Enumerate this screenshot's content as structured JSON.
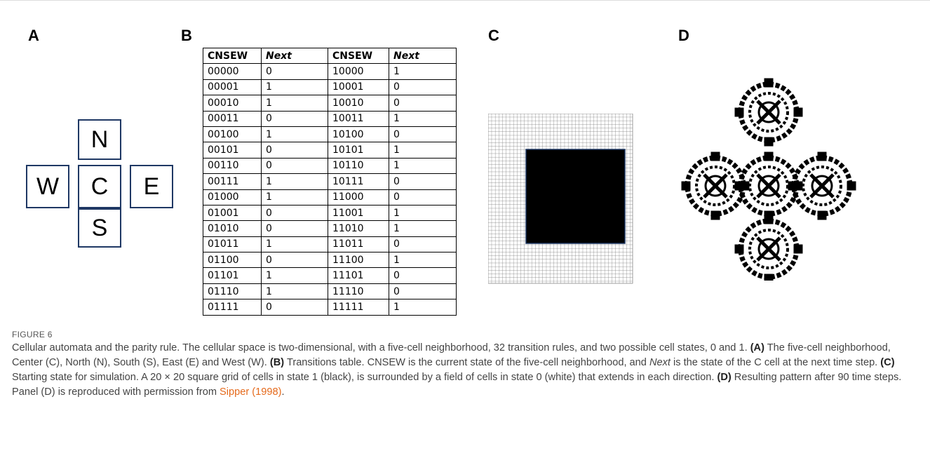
{
  "panels": {
    "a": {
      "label": "A",
      "cells": {
        "n": "N",
        "w": "W",
        "c": "C",
        "e": "E",
        "s": "S"
      }
    },
    "b": {
      "label": "B",
      "table": {
        "header": [
          "CNSEW",
          "Next",
          "CNSEW",
          "Next"
        ],
        "rows": [
          [
            "00000",
            "0",
            "10000",
            "1"
          ],
          [
            "00001",
            "1",
            "10001",
            "0"
          ],
          [
            "00010",
            "1",
            "10010",
            "0"
          ],
          [
            "00011",
            "0",
            "10011",
            "1"
          ],
          [
            "00100",
            "1",
            "10100",
            "0"
          ],
          [
            "00101",
            "0",
            "10101",
            "1"
          ],
          [
            "00110",
            "0",
            "10110",
            "1"
          ],
          [
            "00111",
            "1",
            "10111",
            "0"
          ],
          [
            "01000",
            "1",
            "11000",
            "0"
          ],
          [
            "01001",
            "0",
            "11001",
            "1"
          ],
          [
            "01010",
            "0",
            "11010",
            "1"
          ],
          [
            "01011",
            "1",
            "11011",
            "0"
          ],
          [
            "01100",
            "0",
            "11100",
            "1"
          ],
          [
            "01101",
            "1",
            "11101",
            "0"
          ],
          [
            "01110",
            "1",
            "11110",
            "0"
          ],
          [
            "01111",
            "0",
            "11111",
            "1"
          ]
        ]
      }
    },
    "c": {
      "label": "C"
    },
    "d": {
      "label": "D"
    }
  },
  "caption": {
    "figure_label": "FIGURE 6",
    "segments": [
      "Cellular automata and the parity rule. The cellular space is two-dimensional, with a five-cell neighborhood, 32 transition rules, and two possible cell states, 0 and 1. ",
      "(A)",
      " The five-cell neighborhood, Center (C), North (N), South (S), East (E) and West (W). ",
      "(B)",
      " Transitions table. CNSEW is the current state of the five-cell neighborhood, and ",
      "Next",
      " is the state of the C cell at the next time step. ",
      "(C)",
      " Starting state for simulation. A 20 × 20 square grid of cells in state 1 (black), is surrounded by a field of cells in state 0 (white) that extends in each direction. ",
      "(D)",
      " Resulting pattern after 90 time steps. Panel (D) is reproduced with permission from ",
      "Sipper (1998)",
      "."
    ]
  }
}
